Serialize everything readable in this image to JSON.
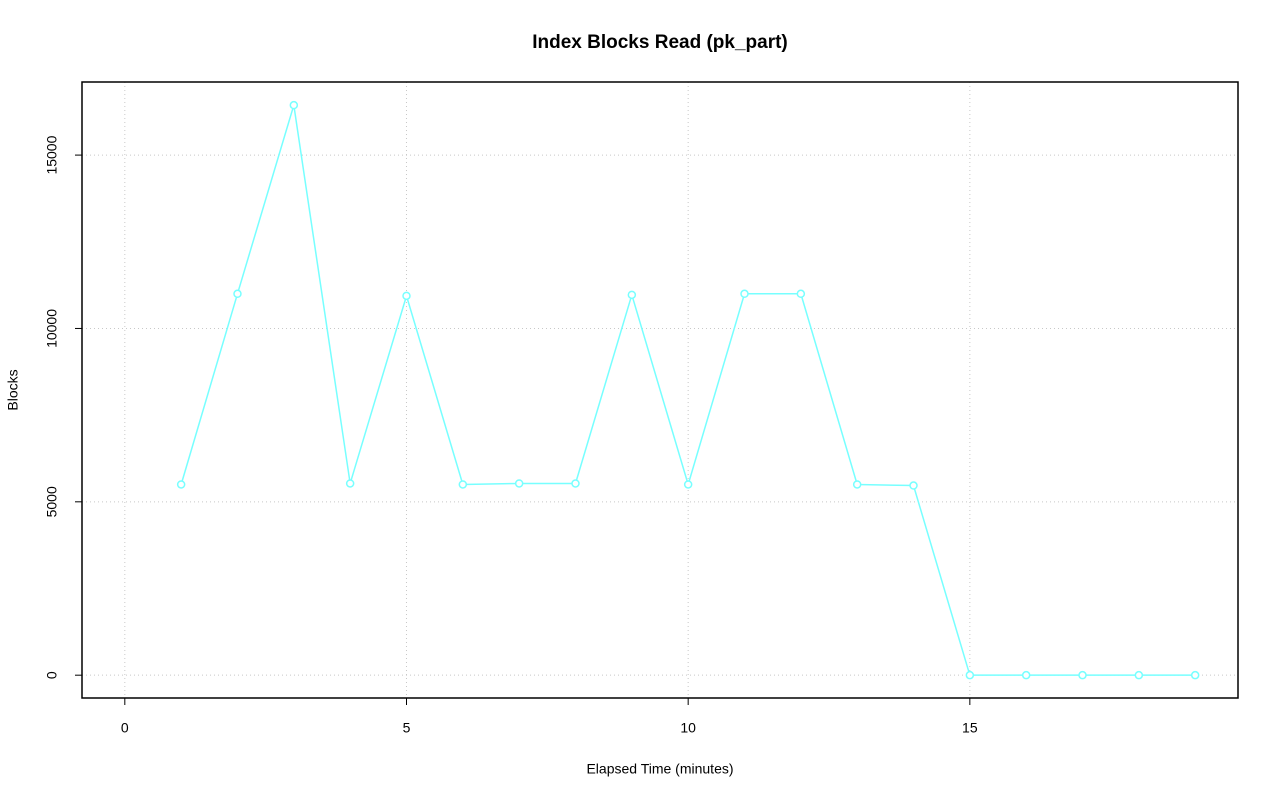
{
  "chart_data": {
    "type": "line",
    "title": "Index Blocks Read (pk_part)",
    "x_label": "Elapsed Time (minutes)",
    "y_label": "Blocks",
    "series": [
      {
        "name": "pk_part",
        "color": "#77ffff",
        "x": [
          1,
          2,
          3,
          4,
          5,
          6,
          7,
          8,
          9,
          10,
          11,
          12,
          13,
          14,
          15,
          16,
          17,
          18,
          19
        ],
        "values": [
          5500,
          11000,
          16440,
          5530,
          10940,
          5500,
          5530,
          5530,
          10970,
          5500,
          11000,
          11000,
          5500,
          5470,
          0,
          0,
          0,
          0,
          0
        ]
      }
    ],
    "xlim": [
      -0.76,
      19.76
    ],
    "xticks": [
      0,
      5,
      10,
      15
    ],
    "ylim": [
      -658,
      17108
    ],
    "yticks": [
      0,
      5000,
      10000,
      15000
    ],
    "grid": true
  }
}
